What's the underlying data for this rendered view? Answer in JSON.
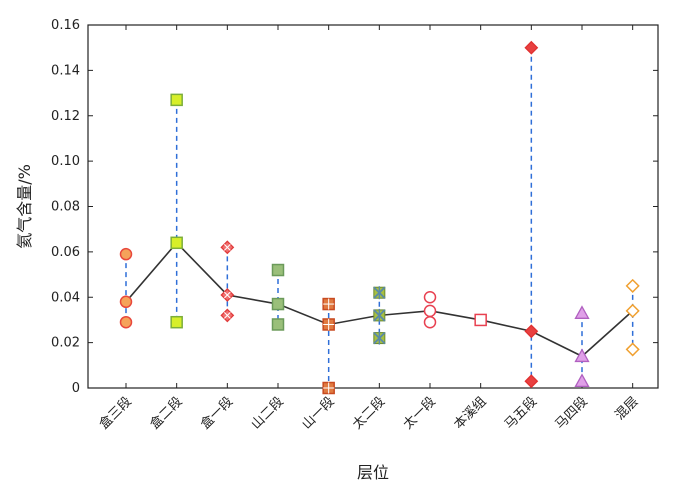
{
  "chart_data": {
    "type": "scatter",
    "xlabel": "层位",
    "ylabel": "氦气含量/%",
    "ylim": [
      0,
      0.16
    ],
    "yticks": [
      0,
      0.02,
      0.04,
      0.06,
      0.08,
      0.1,
      0.12,
      0.14,
      0.16
    ],
    "ytick_labels": [
      "0",
      "0.02",
      "0.04",
      "0.06",
      "0.08",
      "0.10",
      "0.12",
      "0.14",
      "0.16"
    ],
    "categories": [
      "盒三段",
      "盒二段",
      "盒一段",
      "山二段",
      "山一段",
      "太二段",
      "太一段",
      "本溪组",
      "马五段",
      "马四段",
      "混层"
    ],
    "series": [
      {
        "marker": "circle-filled",
        "color": "#e8483c",
        "fill": "#f5a35a",
        "max": 0.059,
        "min": 0.029,
        "mean": 0.038
      },
      {
        "marker": "square-filled",
        "color": "#7cae3a",
        "fill": "#d7ef2a",
        "max": 0.127,
        "min": 0.029,
        "mean": 0.064
      },
      {
        "marker": "diamond-hatched",
        "color": "#e03a3a",
        "fill": "#f07070",
        "max": 0.062,
        "min": 0.032,
        "mean": 0.041
      },
      {
        "marker": "square-filled",
        "color": "#6b9a5a",
        "fill": "#9abf7a",
        "max": 0.052,
        "min": 0.028,
        "mean": 0.037
      },
      {
        "marker": "square-hatched",
        "color": "#c84a20",
        "fill": "#e07a40",
        "max": 0.037,
        "min": 0.0,
        "mean": 0.028
      },
      {
        "marker": "star",
        "color": "#5a8aa8",
        "fill": "#a8c040",
        "max": 0.042,
        "min": 0.022,
        "mean": 0.032
      },
      {
        "marker": "circle-open",
        "color": "#e84050",
        "fill": "none",
        "max": 0.04,
        "min": 0.029,
        "mean": 0.034
      },
      {
        "marker": "square-open",
        "color": "#e84050",
        "fill": "none",
        "max": 0.03,
        "min": 0.03,
        "mean": 0.03
      },
      {
        "marker": "diamond-filled",
        "color": "#e03030",
        "fill": "#e84040",
        "max": 0.15,
        "min": 0.003,
        "mean": 0.025
      },
      {
        "marker": "triangle",
        "color": "#b060c0",
        "fill": "#e0a0e8",
        "max": 0.033,
        "min": 0.003,
        "mean": 0.014
      },
      {
        "marker": "diamond-open",
        "color": "#f0a030",
        "fill": "none",
        "max": 0.045,
        "min": 0.017,
        "mean": 0.034
      }
    ],
    "range_line_color": "#2f6fd8",
    "mean_line_color": "#333333",
    "grid": false
  }
}
